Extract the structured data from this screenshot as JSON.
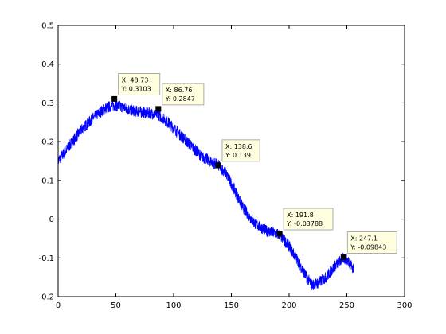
{
  "chart_data": {
    "type": "line",
    "title": "",
    "xlabel": "",
    "ylabel": "",
    "xlim": [
      0,
      300
    ],
    "ylim": [
      -0.2,
      0.5
    ],
    "xticks": [
      0,
      50,
      100,
      150,
      200,
      250,
      300
    ],
    "yticks": [
      -0.2,
      -0.1,
      0,
      0.1,
      0.2,
      0.3,
      0.4,
      0.5
    ],
    "xtick_labels": [
      "0",
      "50",
      "100",
      "150",
      "200",
      "250",
      "300"
    ],
    "ytick_labels": [
      "-0.2",
      "-0.1",
      "0",
      "0.1",
      "0.2",
      "0.3",
      "0.4",
      "0.5"
    ],
    "grid": false,
    "series_color": "#0000ff",
    "noise_band": 0.015,
    "series": [
      {
        "x": [
          0,
          10,
          20,
          30,
          40,
          48.73,
          55,
          65,
          75,
          86.76,
          95,
          105,
          115,
          125,
          138.6,
          145,
          152,
          160,
          170,
          180,
          191.8,
          200,
          208,
          215,
          220,
          225,
          232,
          240,
          247.1,
          252,
          256
        ],
        "y": [
          0.15,
          0.19,
          0.23,
          0.26,
          0.285,
          0.295,
          0.29,
          0.28,
          0.275,
          0.27,
          0.25,
          0.22,
          0.19,
          0.16,
          0.139,
          0.12,
          0.08,
          0.03,
          -0.01,
          -0.03,
          -0.04,
          -0.07,
          -0.11,
          -0.15,
          -0.17,
          -0.165,
          -0.15,
          -0.12,
          -0.1,
          -0.11,
          -0.13
        ]
      }
    ],
    "datatips": [
      {
        "x": 48.73,
        "y": 0.3103,
        "line1": "X: 48.73",
        "line2": "Y: 0.3103"
      },
      {
        "x": 86.76,
        "y": 0.2847,
        "line1": "X: 86.76",
        "line2": "Y: 0.2847"
      },
      {
        "x": 138.6,
        "y": 0.139,
        "line1": "X: 138.6",
        "line2": "Y: 0.139"
      },
      {
        "x": 191.8,
        "y": -0.03788,
        "line1": "X: 191.8",
        "line2": "Y: -0.03788"
      },
      {
        "x": 247.1,
        "y": -0.09843,
        "line1": "X: 247.1",
        "line2": "Y: -0.09843"
      }
    ]
  }
}
